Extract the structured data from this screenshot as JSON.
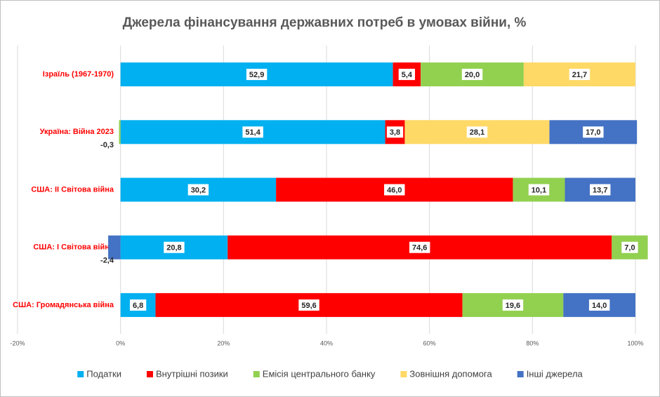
{
  "chart_data": {
    "type": "stacked_bar_horizontal",
    "title": "Джерела фінансування державних потреб в умовах війни, %",
    "categories": [
      "Ізраїль (1967-1970)",
      "Україна: Війна 2023",
      "США: ІІ Світова війна",
      "США: І Світова війна",
      "США: Громадянська війна"
    ],
    "series": [
      {
        "name": "Податки",
        "color": "#00b0f0",
        "values": [
          52.9,
          51.4,
          30.2,
          20.8,
          6.8
        ],
        "value_labels": [
          "52,9",
          "51,4",
          "30,2",
          "20,8",
          "6,8"
        ]
      },
      {
        "name": "Внутрішні позики",
        "color": "#ff0000",
        "values": [
          5.4,
          3.8,
          46.0,
          74.6,
          59.6
        ],
        "value_labels": [
          "5,4",
          "3,8",
          "46,0",
          "74,6",
          "59,6"
        ]
      },
      {
        "name": "Емісія центрального банку",
        "color": "#92d050",
        "values": [
          20.0,
          -0.3,
          10.1,
          7.0,
          19.6
        ],
        "value_labels": [
          "20,0",
          "-0,3",
          "10,1",
          "7,0",
          "19,6"
        ]
      },
      {
        "name": "Зовнішня допомога",
        "color": "#ffd966",
        "values": [
          21.7,
          28.1,
          null,
          null,
          null
        ],
        "value_labels": [
          "21,7",
          "28,1",
          null,
          null,
          null
        ]
      },
      {
        "name": "Інші джерела",
        "color": "#4472c4",
        "values": [
          null,
          17.0,
          13.7,
          -2.4,
          14.0
        ],
        "value_labels": [
          null,
          "17,0",
          "13,7",
          "-2,4",
          "14,0"
        ]
      }
    ],
    "xlim": [
      -20,
      100
    ],
    "xticks": [
      {
        "value": -20,
        "label": "-20%"
      },
      {
        "value": 0,
        "label": "0%"
      },
      {
        "value": 20,
        "label": "20%"
      },
      {
        "value": 40,
        "label": "40%"
      },
      {
        "value": 60,
        "label": "60%"
      },
      {
        "value": 80,
        "label": "80%"
      },
      {
        "value": 100,
        "label": "100%"
      }
    ],
    "grid": true,
    "legend": "bottom"
  }
}
